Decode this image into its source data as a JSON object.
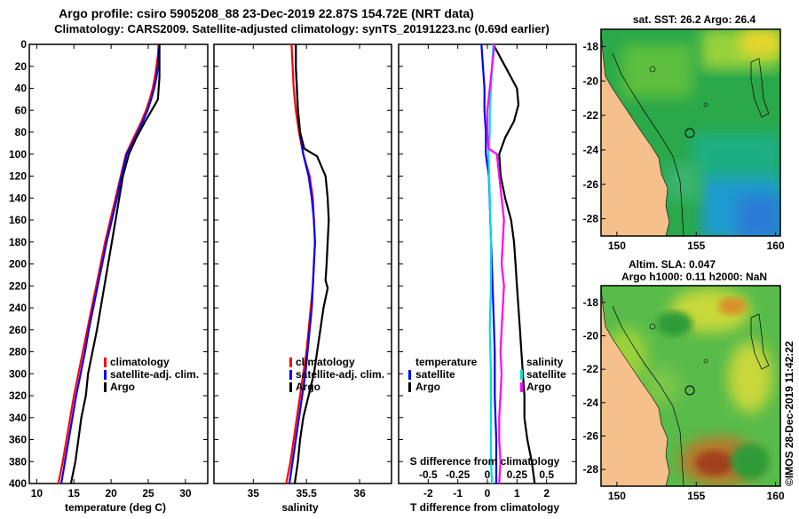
{
  "header": {
    "line1": "Argo profile: csiro 5905208_88 23-Dec-2019 22.87S 154.72E (NRT data)",
    "line2": "Climatology: CARS2009. Satellite-adjusted climatology: synTS_20191223.nc (0.69d earlier)"
  },
  "colors": {
    "climatology": "#ff0000",
    "satellite": "#0000ff",
    "argo": "#000000",
    "temp_diff_sat": "#00dddd",
    "sal_diff_argo": "#ff00ff",
    "land": "#f5c08c"
  },
  "chart_data": [
    {
      "type": "line",
      "id": "temperature",
      "xlabel": "temperature (deg C)",
      "xlim": [
        9,
        33
      ],
      "ylim": [
        0,
        400
      ],
      "xticks": [
        10,
        15,
        20,
        25,
        30
      ],
      "yticks": [
        0,
        20,
        40,
        60,
        80,
        100,
        120,
        140,
        160,
        180,
        200,
        220,
        240,
        260,
        280,
        300,
        320,
        340,
        360,
        380,
        400
      ],
      "legend": [
        "climatology",
        "satellite-adj. clim.",
        "Argo"
      ],
      "series": [
        {
          "name": "climatology",
          "color": "#ff0000",
          "points": [
            [
              26.4,
              0
            ],
            [
              26.3,
              10
            ],
            [
              26.1,
              20
            ],
            [
              25.9,
              30
            ],
            [
              25.6,
              40
            ],
            [
              25.2,
              50
            ],
            [
              24.7,
              60
            ],
            [
              24.1,
              70
            ],
            [
              23.4,
              80
            ],
            [
              22.7,
              90
            ],
            [
              22.0,
              100
            ],
            [
              21.3,
              120
            ],
            [
              20.6,
              140
            ],
            [
              19.9,
              160
            ],
            [
              19.2,
              180
            ],
            [
              18.6,
              200
            ],
            [
              18.0,
              220
            ],
            [
              17.4,
              240
            ],
            [
              16.8,
              260
            ],
            [
              16.2,
              280
            ],
            [
              15.6,
              300
            ],
            [
              15.0,
              320
            ],
            [
              14.5,
              340
            ],
            [
              14.0,
              360
            ],
            [
              13.5,
              380
            ],
            [
              12.9,
              400
            ]
          ]
        },
        {
          "name": "satellite-adj. clim.",
          "color": "#0000ff",
          "points": [
            [
              26.5,
              0
            ],
            [
              26.4,
              10
            ],
            [
              26.3,
              20
            ],
            [
              26.1,
              30
            ],
            [
              25.8,
              40
            ],
            [
              25.4,
              50
            ],
            [
              24.9,
              60
            ],
            [
              24.3,
              70
            ],
            [
              23.6,
              80
            ],
            [
              22.9,
              90
            ],
            [
              22.1,
              100
            ],
            [
              21.4,
              120
            ],
            [
              20.8,
              140
            ],
            [
              20.1,
              160
            ],
            [
              19.4,
              180
            ],
            [
              18.8,
              200
            ],
            [
              18.2,
              220
            ],
            [
              17.6,
              240
            ],
            [
              17.0,
              260
            ],
            [
              16.5,
              280
            ],
            [
              15.9,
              300
            ],
            [
              15.3,
              320
            ],
            [
              14.8,
              340
            ],
            [
              14.3,
              360
            ],
            [
              13.8,
              380
            ],
            [
              13.3,
              400
            ]
          ]
        },
        {
          "name": "Argo",
          "color": "#000000",
          "points": [
            [
              26.5,
              0
            ],
            [
              26.5,
              10
            ],
            [
              26.5,
              20
            ],
            [
              26.5,
              30
            ],
            [
              26.4,
              40
            ],
            [
              26.3,
              50
            ],
            [
              25.9,
              55
            ],
            [
              24.6,
              70
            ],
            [
              23.4,
              85
            ],
            [
              22.4,
              100
            ],
            [
              21.6,
              120
            ],
            [
              21.1,
              140
            ],
            [
              20.6,
              160
            ],
            [
              20.1,
              180
            ],
            [
              19.6,
              200
            ],
            [
              19.1,
              220
            ],
            [
              18.6,
              240
            ],
            [
              18.1,
              260
            ],
            [
              17.5,
              280
            ],
            [
              16.9,
              300
            ],
            [
              16.6,
              320
            ],
            [
              16.0,
              340
            ],
            [
              15.6,
              360
            ],
            [
              15.2,
              380
            ],
            [
              14.6,
              400
            ]
          ]
        }
      ]
    },
    {
      "type": "line",
      "id": "salinity",
      "xlabel": "salinity",
      "xlim": [
        34.63,
        36.3
      ],
      "ylim": [
        0,
        400
      ],
      "xticks": [
        35,
        35.5,
        36
      ],
      "xticklabels": [
        "35",
        "35.5",
        "36"
      ],
      "legend": [
        "climatology",
        "satellite-adj. clim.",
        "Argo"
      ],
      "series": [
        {
          "name": "climatology",
          "color": "#ff0000",
          "points": [
            [
              35.36,
              0
            ],
            [
              35.37,
              20
            ],
            [
              35.38,
              40
            ],
            [
              35.4,
              60
            ],
            [
              35.43,
              80
            ],
            [
              35.47,
              100
            ],
            [
              35.53,
              120
            ],
            [
              35.56,
              140
            ],
            [
              35.57,
              160
            ],
            [
              35.58,
              180
            ],
            [
              35.57,
              200
            ],
            [
              35.56,
              220
            ],
            [
              35.54,
              240
            ],
            [
              35.52,
              260
            ],
            [
              35.5,
              280
            ],
            [
              35.47,
              300
            ],
            [
              35.44,
              320
            ],
            [
              35.41,
              340
            ],
            [
              35.38,
              360
            ],
            [
              35.35,
              380
            ],
            [
              35.31,
              400
            ]
          ]
        },
        {
          "name": "satellite-adj. clim.",
          "color": "#0000ff",
          "points": [
            [
              35.4,
              0
            ],
            [
              35.4,
              20
            ],
            [
              35.41,
              40
            ],
            [
              35.42,
              60
            ],
            [
              35.44,
              80
            ],
            [
              35.47,
              100
            ],
            [
              35.52,
              120
            ],
            [
              35.55,
              140
            ],
            [
              35.57,
              160
            ],
            [
              35.58,
              180
            ],
            [
              35.57,
              200
            ],
            [
              35.56,
              220
            ],
            [
              35.55,
              240
            ],
            [
              35.53,
              260
            ],
            [
              35.51,
              280
            ],
            [
              35.49,
              300
            ],
            [
              35.46,
              320
            ],
            [
              35.43,
              340
            ],
            [
              35.4,
              360
            ],
            [
              35.37,
              380
            ],
            [
              35.34,
              400
            ]
          ]
        },
        {
          "name": "Argo",
          "color": "#000000",
          "points": [
            [
              35.4,
              0
            ],
            [
              35.4,
              20
            ],
            [
              35.41,
              40
            ],
            [
              35.42,
              60
            ],
            [
              35.44,
              80
            ],
            [
              35.48,
              95
            ],
            [
              35.6,
              102
            ],
            [
              35.68,
              120
            ],
            [
              35.7,
              140
            ],
            [
              35.71,
              160
            ],
            [
              35.7,
              180
            ],
            [
              35.69,
              200
            ],
            [
              35.68,
              215
            ],
            [
              35.7,
              222
            ],
            [
              35.66,
              240
            ],
            [
              35.63,
              260
            ],
            [
              35.6,
              280
            ],
            [
              35.57,
              300
            ],
            [
              35.52,
              320
            ],
            [
              35.47,
              340
            ],
            [
              35.44,
              360
            ],
            [
              35.42,
              380
            ],
            [
              35.39,
              400
            ]
          ]
        }
      ]
    },
    {
      "type": "line",
      "id": "difference",
      "xlabel": "T difference from climatology",
      "xlabel2": "S difference from climatology",
      "xlim": [
        -3,
        3
      ],
      "ylim": [
        0,
        400
      ],
      "xticks": [
        -2,
        -1,
        0,
        1,
        2
      ],
      "sxlim": [
        -0.75,
        0.75
      ],
      "sxticks": [
        -0.5,
        -0.25,
        0,
        0.25,
        0.5
      ],
      "sxticklabels": [
        "-0.5",
        "-0.25",
        "0",
        "0.25",
        "0.5"
      ],
      "legend_left": {
        "title": "temperature",
        "items": [
          "satellite",
          "Argo"
        ]
      },
      "legend_right": {
        "title": "salinity",
        "items": [
          "satellite",
          "Argo"
        ]
      },
      "series": [
        {
          "name": "temperature satellite",
          "color": "#0000ff",
          "axis": "t",
          "points": [
            [
              -0.2,
              0
            ],
            [
              -0.15,
              20
            ],
            [
              -0.1,
              40
            ],
            [
              -0.1,
              60
            ],
            [
              -0.05,
              80
            ],
            [
              -0.05,
              100
            ],
            [
              0.05,
              120
            ],
            [
              0.1,
              160
            ],
            [
              0.15,
              200
            ],
            [
              0.2,
              240
            ],
            [
              0.25,
              280
            ],
            [
              0.25,
              320
            ],
            [
              0.3,
              360
            ],
            [
              0.3,
              400
            ]
          ]
        },
        {
          "name": "temperature Argo",
          "color": "#000000",
          "axis": "t",
          "points": [
            [
              0.2,
              0
            ],
            [
              0.6,
              20
            ],
            [
              1.0,
              40
            ],
            [
              1.05,
              55
            ],
            [
              0.9,
              70
            ],
            [
              0.6,
              85
            ],
            [
              0.4,
              100
            ],
            [
              0.45,
              120
            ],
            [
              0.6,
              140
            ],
            [
              0.8,
              160
            ],
            [
              0.9,
              180
            ],
            [
              0.95,
              200
            ],
            [
              1.0,
              220
            ],
            [
              1.05,
              240
            ],
            [
              1.1,
              260
            ],
            [
              1.15,
              280
            ],
            [
              1.2,
              300
            ],
            [
              1.25,
              320
            ],
            [
              1.25,
              340
            ],
            [
              1.35,
              360
            ],
            [
              1.5,
              380
            ],
            [
              1.6,
              400
            ]
          ]
        },
        {
          "name": "salinity satellite",
          "color": "#00dddd",
          "axis": "s",
          "points": [
            [
              0.05,
              0
            ],
            [
              0.04,
              20
            ],
            [
              0.03,
              40
            ],
            [
              0.02,
              60
            ],
            [
              0.02,
              80
            ],
            [
              0.01,
              100
            ],
            [
              0.02,
              140
            ],
            [
              0.03,
              180
            ],
            [
              0.03,
              220
            ],
            [
              0.02,
              260
            ],
            [
              0.03,
              300
            ],
            [
              0.03,
              340
            ],
            [
              0.03,
              380
            ],
            [
              0.04,
              400
            ]
          ]
        },
        {
          "name": "salinity Argo",
          "color": "#ff00ff",
          "axis": "s",
          "points": [
            [
              0.06,
              0
            ],
            [
              0.04,
              20
            ],
            [
              0.02,
              40
            ],
            [
              0.0,
              60
            ],
            [
              0.0,
              80
            ],
            [
              0.01,
              95
            ],
            [
              0.08,
              100
            ],
            [
              0.1,
              120
            ],
            [
              0.12,
              140
            ],
            [
              0.14,
              160
            ],
            [
              0.13,
              180
            ],
            [
              0.12,
              200
            ],
            [
              0.14,
              220
            ],
            [
              0.13,
              240
            ],
            [
              0.12,
              260
            ],
            [
              0.11,
              280
            ],
            [
              0.12,
              300
            ],
            [
              0.11,
              320
            ],
            [
              0.1,
              340
            ],
            [
              0.1,
              360
            ],
            [
              0.11,
              380
            ],
            [
              0.1,
              400
            ]
          ]
        }
      ]
    },
    {
      "type": "heatmap",
      "id": "sst_map",
      "title": "sat. SST: 26.2 Argo: 26.4",
      "xlim": [
        149,
        160.3
      ],
      "ylim": [
        -29,
        -17
      ],
      "xticks": [
        150,
        155,
        160
      ],
      "yticks": [
        -18,
        -20,
        -22,
        -24,
        -26,
        -28
      ],
      "argo_position": [
        154.72,
        -22.87
      ]
    },
    {
      "type": "heatmap",
      "id": "altimetry_map",
      "title": "Altim. SLA: 0.047",
      "subtitle": "Argo h1000: 0.11 h2000: NaN",
      "xlim": [
        149,
        160.3
      ],
      "ylim": [
        -29,
        -17
      ],
      "xticks": [
        150,
        155,
        160
      ],
      "yticks": [
        -18,
        -20,
        -22,
        -24,
        -26,
        -28
      ],
      "argo_position": [
        154.72,
        -22.87
      ]
    }
  ],
  "footer": {
    "credit": "©IMOS 28-Dec-2019 11:42:22"
  }
}
